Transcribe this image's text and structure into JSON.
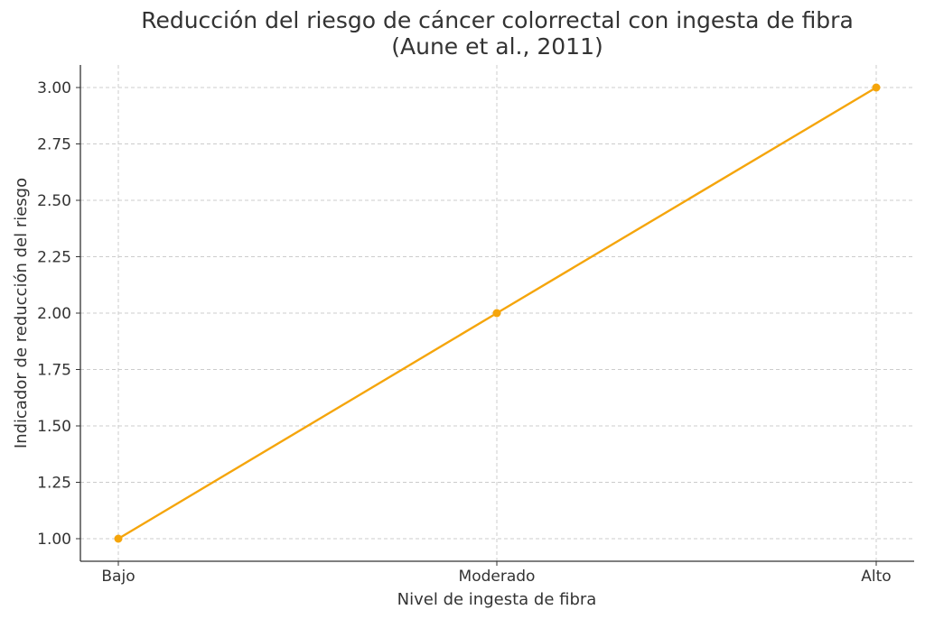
{
  "chart_data": {
    "type": "line",
    "title_line1": "Reducción del riesgo de cáncer colorrectal con ingesta de fibra",
    "title_line2": "(Aune et al., 2011)",
    "xlabel": "Nivel de ingesta de fibra",
    "ylabel": "Indicador de reducción del riesgo",
    "categories": [
      "Bajo",
      "Moderado",
      "Alto"
    ],
    "series": [
      {
        "values": [
          1,
          2,
          3
        ],
        "color": "#f5a50b"
      }
    ],
    "ylim": [
      0.9,
      3.1
    ],
    "yticks": [
      1.0,
      1.25,
      1.5,
      1.75,
      2.0,
      2.25,
      2.5,
      2.75,
      3.0
    ],
    "ytick_labels": [
      "1.00",
      "1.25",
      "1.50",
      "1.75",
      "2.00",
      "2.25",
      "2.50",
      "2.75",
      "3.00"
    ],
    "grid": true,
    "marker": "circle"
  }
}
